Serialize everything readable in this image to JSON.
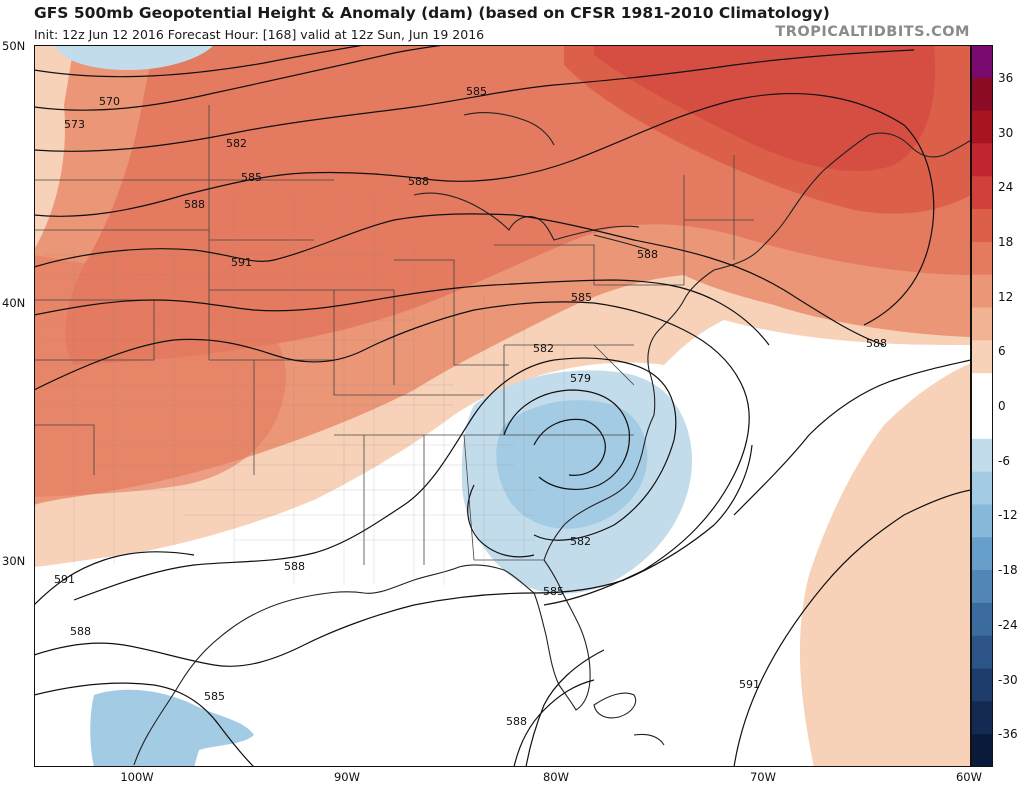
{
  "header": {
    "title": "GFS 500mb Geopotential Height & Anomaly (dam) (based on CFSR 1981-2010 Climatology)",
    "subtitle": "Init: 12z Jun 12 2016   Forecast Hour: [168]   valid at 12z Sun, Jun 19 2016",
    "watermark": "TROPICALTIDBITS.COM"
  },
  "axes": {
    "lat_labels": [
      {
        "text": "50N",
        "lat": 50
      },
      {
        "text": "40N",
        "lat": 40
      },
      {
        "text": "30N",
        "lat": 30
      }
    ],
    "lon_labels": [
      {
        "text": "100W",
        "lon": -100
      },
      {
        "text": "90W",
        "lon": -90
      },
      {
        "text": "80W",
        "lon": -80
      },
      {
        "text": "70W",
        "lon": -70
      },
      {
        "text": "60W",
        "lon": -60
      }
    ]
  },
  "contours": {
    "labels": [
      "570",
      "573",
      "582",
      "585",
      "588",
      "591",
      "585",
      "588",
      "582",
      "579",
      "582",
      "585",
      "585",
      "588",
      "591",
      "588",
      "588",
      "591",
      "588",
      "585",
      "588"
    ]
  },
  "colorbar": {
    "ticks": [
      "36",
      "30",
      "24",
      "18",
      "12",
      "6",
      "0",
      "-6",
      "-12",
      "-18",
      "-24",
      "-30",
      "-36"
    ],
    "colors": [
      "#7a0a6e",
      "#8c0c26",
      "#a8141f",
      "#c22630",
      "#d2403c",
      "#dc5f4a",
      "#e47a5f",
      "#eb9676",
      "#f2b394",
      "#f8d2b8",
      "#ffffff",
      "#ffffff",
      "#c3dcec",
      "#a4cbe4",
      "#86b8da",
      "#689fca",
      "#5186b6",
      "#3c6c9f",
      "#2c5486",
      "#1e3d6c",
      "#142a52",
      "#0a1a3a"
    ]
  },
  "colors": {
    "positive_strong": "#dc5f4a",
    "positive_mid": "#eb9676",
    "positive_light": "#f8d2b8",
    "negative_light": "#c3dcec",
    "negative_mid": "#a4cbe4"
  }
}
